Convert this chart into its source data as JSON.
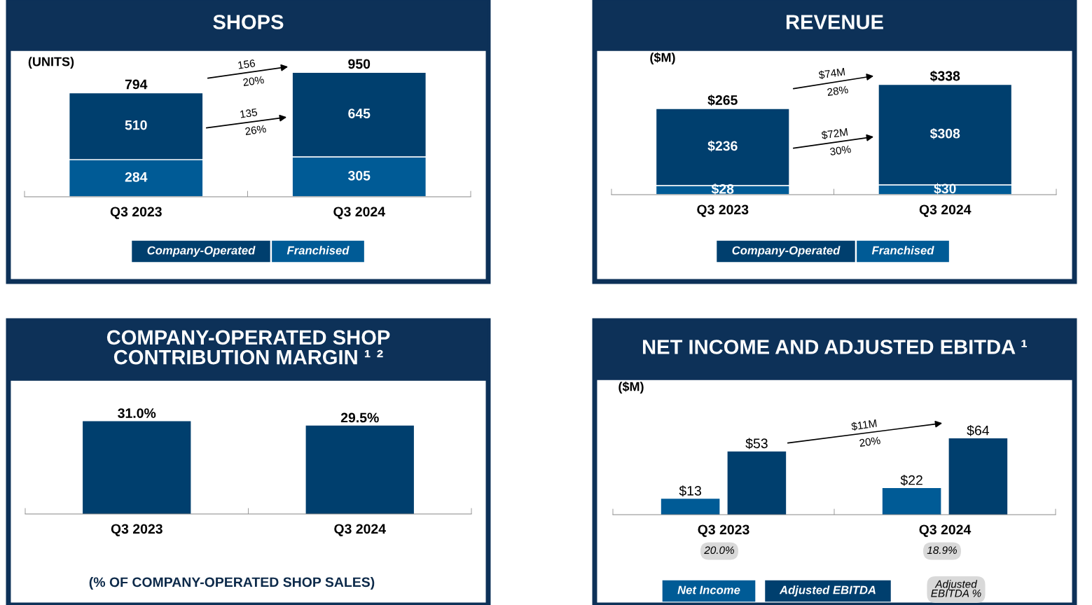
{
  "chart_data": [
    {
      "type": "bar",
      "title": "SHOPS",
      "ylabel": "(UNITS)",
      "categories": [
        "Q3 2023",
        "Q3 2024"
      ],
      "stacked": true,
      "series": [
        {
          "name": "Franchised",
          "color": "#005b96",
          "values": [
            284,
            305
          ]
        },
        {
          "name": "Company-Operated",
          "color": "#003f6e",
          "values": [
            510,
            645
          ]
        }
      ],
      "data_labels": true,
      "totals": [
        "794",
        "950"
      ],
      "annotations": [
        "156",
        "20%",
        "135",
        "26%"
      ],
      "legend": "bottom"
    },
    {
      "type": "bar",
      "title": "REVENUE",
      "ylabel": "($M)",
      "categories": [
        "Q3 2023",
        "Q3 2024"
      ],
      "stacked": true,
      "series": [
        {
          "name": "Franchised",
          "color": "#005b96",
          "values": [
            28,
            30
          ],
          "value_labels": [
            "$28",
            "$30"
          ]
        },
        {
          "name": "Company-Operated",
          "color": "#003f6e",
          "values": [
            236,
            308
          ],
          "value_labels": [
            "$236",
            "$308"
          ]
        }
      ],
      "totals": [
        "$265",
        "$338"
      ],
      "annotations": [
        "$74M",
        "28%",
        "$72M",
        "30%"
      ],
      "legend": "bottom"
    },
    {
      "type": "bar",
      "title": "COMPANY-OPERATED SHOP\nCONTRIBUTION MARGIN ¹ ²",
      "categories": [
        "Q3 2023",
        "Q3 2024"
      ],
      "values": [
        31.0,
        29.5
      ],
      "color": "#003f6e",
      "value_labels": [
        "31.0%",
        "29.5%"
      ],
      "annotations": [
        "(% OF COMPANY-OPERATED SHOP SALES)"
      ]
    },
    {
      "type": "bar",
      "title": "NET INCOME AND ADJUSTED EBITDA ¹",
      "ylabel": "($M)",
      "categories": [
        "Q3 2023",
        "Q3 2024"
      ],
      "series": [
        {
          "name": "Net Income",
          "color": "#005b96",
          "values": [
            13,
            22
          ],
          "value_labels": [
            "$13",
            "$22"
          ]
        },
        {
          "name": "Adjusted EBITDA",
          "color": "#003f6e",
          "values": [
            53,
            64
          ],
          "value_labels": [
            "$53",
            "$64"
          ]
        }
      ],
      "annotations": [
        "$11M",
        "20%",
        "20.0%",
        "18.9%",
        "Adjusted\nEBITDA %"
      ],
      "legend": "bottom"
    }
  ]
}
